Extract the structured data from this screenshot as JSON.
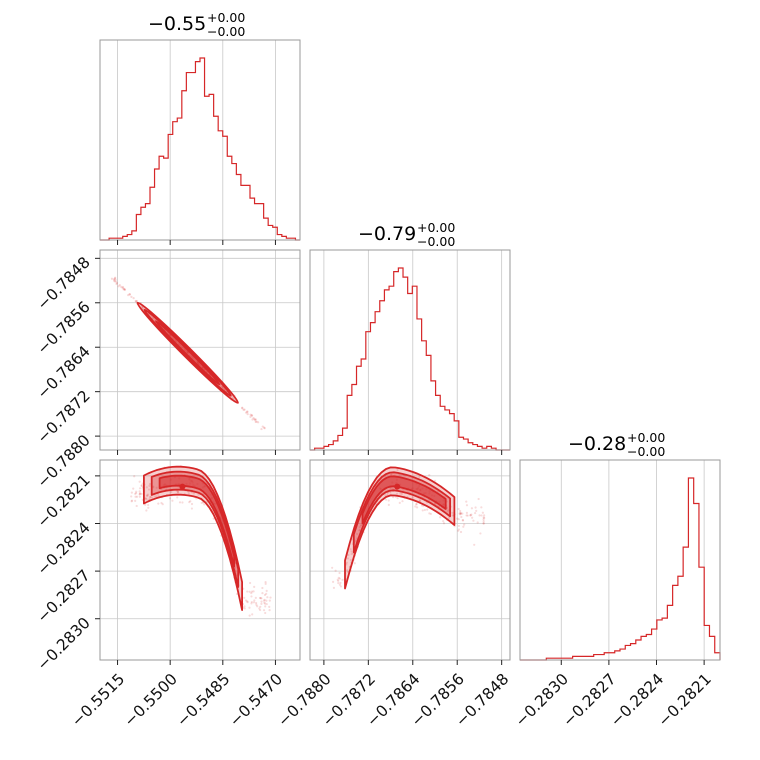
{
  "chart_data": {
    "type": "corner",
    "color": "#d62728",
    "parameters": [
      {
        "title_value": "−0.55",
        "title_sup": "+0.00",
        "title_sub": "−0.00",
        "range": [
          -0.552,
          -0.5463
        ],
        "ticks": [
          -0.5515,
          -0.55,
          -0.5485,
          -0.547
        ],
        "tick_labels": [
          "−0.5515",
          "−0.5500",
          "−0.5485",
          "−0.5470"
        ]
      },
      {
        "title_value": "−0.79",
        "title_sup": "+0.00",
        "title_sub": "−0.00",
        "range": [
          -0.78825,
          -0.78465
        ],
        "ticks": [
          -0.788,
          -0.7872,
          -0.7864,
          -0.7856,
          -0.7848
        ],
        "tick_labels": [
          "−0.7880",
          "−0.7872",
          "−0.7864",
          "−0.7856",
          "−0.7848"
        ]
      },
      {
        "title_value": "−0.28",
        "title_sup": "+0.00",
        "title_sub": "−0.00",
        "range": [
          -0.28326,
          -0.282
        ],
        "ticks": [
          -0.283,
          -0.2827,
          -0.2824,
          -0.2821
        ],
        "tick_labels": [
          "−0.2830",
          "−0.2827",
          "−0.2824",
          "−0.2821"
        ]
      }
    ],
    "histograms": [
      [
        0,
        0,
        0.01,
        0.01,
        0.01,
        0.02,
        0.03,
        0.05,
        0.14,
        0.18,
        0.2,
        0.29,
        0.39,
        0.46,
        0.45,
        0.58,
        0.65,
        0.67,
        0.82,
        0.92,
        0.92,
        0.98,
        1.0,
        0.79,
        0.8,
        0.68,
        0.6,
        0.57,
        0.46,
        0.42,
        0.36,
        0.3,
        0.3,
        0.23,
        0.2,
        0.2,
        0.12,
        0.08,
        0.07,
        0.03,
        0.02,
        0.01,
        0.01,
        0
      ],
      [
        0,
        0.01,
        0.01,
        0.02,
        0.03,
        0.05,
        0.08,
        0.12,
        0.3,
        0.36,
        0.46,
        0.5,
        0.65,
        0.7,
        0.76,
        0.82,
        0.88,
        0.9,
        0.98,
        1.0,
        0.95,
        0.86,
        0.9,
        0.72,
        0.6,
        0.52,
        0.38,
        0.3,
        0.24,
        0.22,
        0.2,
        0.16,
        0.07,
        0.06,
        0.04,
        0.03,
        0.02,
        0.01,
        0.02,
        0.01,
        0,
        0,
        0
      ],
      [
        0,
        0,
        0,
        0,
        0,
        0.01,
        0.01,
        0.01,
        0.01,
        0.01,
        0.02,
        0.02,
        0.02,
        0.02,
        0.03,
        0.03,
        0.04,
        0.04,
        0.05,
        0.06,
        0.08,
        0.09,
        0.11,
        0.13,
        0.14,
        0.17,
        0.22,
        0.23,
        0.3,
        0.41,
        0.46,
        0.62,
        1.0,
        0.86,
        0.51,
        0.19,
        0.13,
        0.04
      ]
    ],
    "contours": {
      "p0_p1": {
        "x": [
          -0.55085,
          -0.54815
        ],
        "y": [
          -0.78565,
          -0.78735
        ],
        "correlation": -0.99
      },
      "p0_p2": {
        "x": [
          -0.55075,
          -0.54795
        ],
        "peak": [
          -0.54965,
          -0.28213
        ],
        "edge_y": -0.2827
      },
      "p1_p2": {
        "x": [
          -0.78762,
          -0.78565
        ],
        "peak": [
          -0.78668,
          -0.28213
        ],
        "edge_y": -0.28264
      }
    }
  }
}
